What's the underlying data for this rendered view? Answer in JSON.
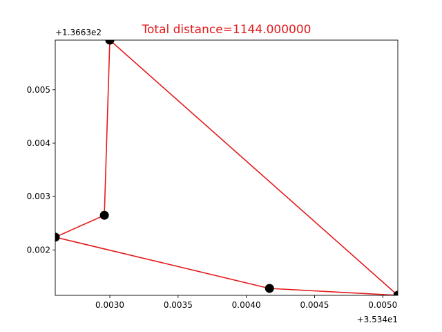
{
  "chart_data": {
    "type": "line",
    "title": "Total distance=1144.000000",
    "title_color": "#e41a1c",
    "line_color": "#e41a1c",
    "marker_color": "#000000",
    "x_offset_label": "+3.534e1",
    "y_offset_label": "+1.3663e2",
    "xlim": [
      0.0026,
      0.00511
    ],
    "ylim": [
      0.00115,
      0.00593
    ],
    "x_ticks": [
      0.003,
      0.0035,
      0.004,
      0.0045,
      0.005
    ],
    "x_tick_labels": [
      "0.0030",
      "0.0035",
      "0.0040",
      "0.0045",
      "0.0050"
    ],
    "y_ticks": [
      0.002,
      0.003,
      0.004,
      0.005
    ],
    "y_tick_labels": [
      "0.002",
      "0.003",
      "0.004",
      "0.005"
    ],
    "grid": false,
    "points": [
      {
        "x": 0.003,
        "y": 0.00593
      },
      {
        "x": 0.00296,
        "y": 0.00265
      },
      {
        "x": 0.0026,
        "y": 0.00224
      },
      {
        "x": 0.00417,
        "y": 0.00128
      },
      {
        "x": 0.00511,
        "y": 0.00115
      }
    ],
    "path_order": [
      0,
      1,
      2,
      3,
      4,
      0
    ]
  }
}
